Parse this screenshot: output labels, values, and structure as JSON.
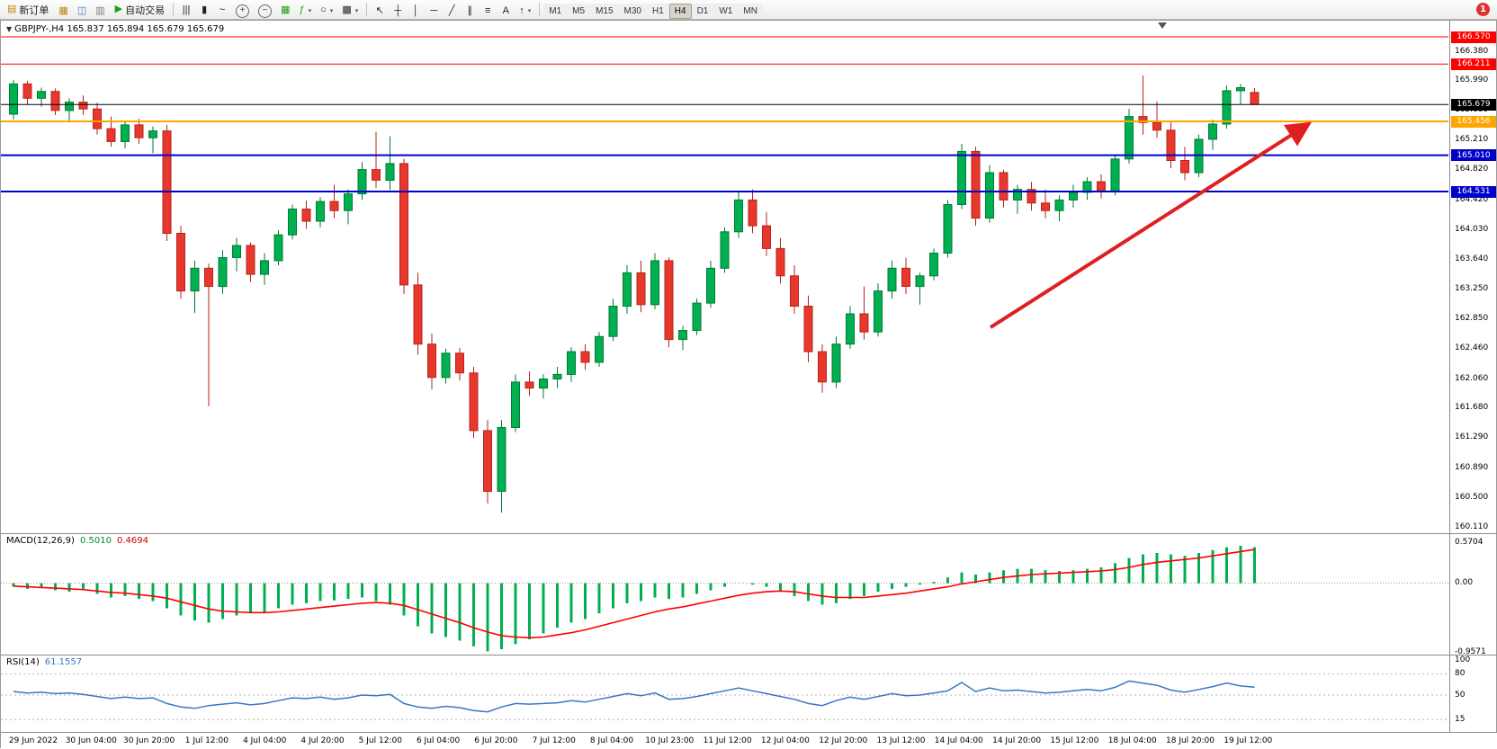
{
  "toolbar": {
    "new_order": {
      "label": "新订单",
      "icon": "new-order-icon",
      "glyph": "▤",
      "color": "#c8860a"
    },
    "left_icons": [
      {
        "name": "charts-window-icon",
        "glyph": "▦",
        "color": "#b8860b"
      },
      {
        "name": "market-watch-icon",
        "glyph": "◫",
        "color": "#4a6fb5"
      },
      {
        "name": "navigator-icon",
        "glyph": "▥",
        "color": "#7a7a7a"
      }
    ],
    "auto_trading": {
      "label": "自动交易",
      "icon": "play-icon",
      "glyph": "▶",
      "color": "#18a018"
    },
    "chart_icons": [
      {
        "name": "bar-chart-icon",
        "glyph": "|||"
      },
      {
        "name": "candlestick-chart-icon",
        "glyph": "▮"
      },
      {
        "name": "line-chart-icon",
        "glyph": "~"
      },
      {
        "name": "zoom-in-icon",
        "glyph": "+",
        "zoom": true
      },
      {
        "name": "zoom-out-icon",
        "glyph": "−",
        "zoom": true
      },
      {
        "name": "arrange-windows-icon",
        "glyph": "▦",
        "color": "#18a018"
      },
      {
        "name": "indicators-icon",
        "glyph": "ƒ",
        "color": "#18a018",
        "caret": true
      },
      {
        "name": "periods-icon",
        "glyph": "○",
        "caret": true
      },
      {
        "name": "templates-icon",
        "glyph": "▩",
        "caret": true
      }
    ],
    "drawing_icons": [
      {
        "name": "cursor-icon",
        "glyph": "↖"
      },
      {
        "name": "crosshair-icon",
        "glyph": "┼"
      },
      {
        "name": "vertical-line-icon",
        "glyph": "│"
      },
      {
        "name": "horizontal-line-icon",
        "glyph": "─"
      },
      {
        "name": "trendline-icon",
        "glyph": "╱"
      },
      {
        "name": "channel-icon",
        "glyph": "∥"
      },
      {
        "name": "fibonacci-icon",
        "glyph": "≡"
      },
      {
        "name": "text-icon",
        "glyph": "A"
      },
      {
        "name": "arrow-objects-icon",
        "glyph": "↑",
        "caret": true
      }
    ],
    "timeframes": [
      "M1",
      "M5",
      "M15",
      "M30",
      "H1",
      "H4",
      "D1",
      "W1",
      "MN"
    ],
    "active_timeframe": "H4",
    "notification_badge": "1"
  },
  "chart": {
    "symbol_label": "GBPJPY-,H4 165.837 165.894 165.679 165.679",
    "price_axis_labels": [
      "166.380",
      "165.990",
      "165.600",
      "165.210",
      "164.820",
      "164.420",
      "164.030",
      "163.640",
      "163.250",
      "162.850",
      "162.460",
      "162.060",
      "161.680",
      "161.290",
      "160.890",
      "160.500",
      "160.110"
    ],
    "price_badges": [
      {
        "label": "166.570",
        "price": 166.57,
        "bg": "#ff0000"
      },
      {
        "label": "166.211",
        "price": 166.211,
        "bg": "#ff0000"
      },
      {
        "label": "165.679",
        "price": 165.679,
        "bg": "#000000"
      },
      {
        "label": "165.456",
        "price": 165.456,
        "bg": "#ffa500"
      },
      {
        "label": "165.010",
        "price": 165.01,
        "bg": "#0000cc"
      },
      {
        "label": "164.531",
        "price": 164.531,
        "bg": "#0000cc"
      }
    ],
    "time_axis_labels": [
      "29 Jun 2022",
      "30 Jun 04:00",
      "30 Jun 20:00",
      "1 Jul 12:00",
      "4 Jul 04:00",
      "4 Jul 20:00",
      "5 Jul 12:00",
      "6 Jul 04:00",
      "6 Jul 20:00",
      "7 Jul 12:00",
      "8 Jul 04:00",
      "10 Jul 23:00",
      "11 Jul 12:00",
      "12 Jul 04:00",
      "12 Jul 20:00",
      "13 Jul 12:00",
      "14 Jul 04:00",
      "14 Jul 20:00",
      "15 Jul 12:00",
      "18 Jul 04:00",
      "18 Jul 20:00",
      "19 Jul 12:00"
    ]
  },
  "chart_data": {
    "type": "candlestick",
    "symbol": "GBPJPY-",
    "timeframe": "H4",
    "current_ohlc": {
      "open": "165.837",
      "high": "165.894",
      "low": "165.679",
      "close": "165.679"
    },
    "price_range": [
      160.11,
      166.57
    ],
    "colors": {
      "up": "#00b050",
      "up_border": "#007a35",
      "down": "#e8372c",
      "down_border": "#b3251c",
      "macd_histogram": "#00b050",
      "macd_signal": "#ff0000",
      "rsi_line": "#3a77c2",
      "arrow": "#e02020",
      "bid_line": "#000000",
      "level_red": "#ff0000",
      "level_orange": "#ffa500",
      "level_blue": "#0000cc"
    },
    "levels": [
      {
        "name": "resistance-line-upper",
        "price": 166.57,
        "color": "#ff0000",
        "width": 1
      },
      {
        "name": "resistance-line-lower",
        "price": 166.211,
        "color": "#ff0000",
        "width": 1
      },
      {
        "name": "bid-price-line",
        "price": 165.679,
        "color": "#000000",
        "width": 1
      },
      {
        "name": "orange-level-line",
        "price": 165.456,
        "color": "#ffa500",
        "width": 2
      },
      {
        "name": "support-line-upper",
        "price": 165.01,
        "color": "#0000cc",
        "width": 2
      },
      {
        "name": "support-line-lower",
        "price": 164.531,
        "color": "#0000cc",
        "width": 2
      }
    ],
    "annotation_arrow": {
      "from_price": [
        1100,
        162.74
      ],
      "to_price": [
        1452,
        165.41
      ],
      "color": "#e02020"
    },
    "ohlc": [
      [
        165.55,
        166.0,
        165.48,
        165.95
      ],
      [
        165.95,
        165.99,
        165.68,
        165.76
      ],
      [
        165.76,
        165.9,
        165.65,
        165.85
      ],
      [
        165.85,
        165.89,
        165.54,
        165.6
      ],
      [
        165.6,
        165.76,
        165.45,
        165.71
      ],
      [
        165.71,
        165.8,
        165.54,
        165.62
      ],
      [
        165.62,
        165.7,
        165.28,
        165.36
      ],
      [
        165.36,
        165.52,
        165.12,
        165.19
      ],
      [
        165.19,
        165.46,
        165.1,
        165.41
      ],
      [
        165.41,
        165.49,
        165.16,
        165.24
      ],
      [
        165.24,
        165.39,
        165.04,
        165.33
      ],
      [
        165.33,
        165.41,
        163.88,
        163.98
      ],
      [
        163.98,
        164.08,
        163.12,
        163.22
      ],
      [
        163.22,
        163.62,
        162.93,
        163.52
      ],
      [
        163.52,
        163.58,
        161.7,
        163.28
      ],
      [
        163.28,
        163.76,
        163.18,
        163.66
      ],
      [
        163.66,
        163.92,
        163.48,
        163.82
      ],
      [
        163.82,
        163.86,
        163.34,
        163.44
      ],
      [
        163.44,
        163.72,
        163.3,
        163.62
      ],
      [
        163.62,
        164.02,
        163.56,
        163.96
      ],
      [
        163.96,
        164.36,
        163.9,
        164.3
      ],
      [
        164.3,
        164.41,
        164.04,
        164.14
      ],
      [
        164.14,
        164.46,
        164.06,
        164.4
      ],
      [
        164.4,
        164.62,
        164.18,
        164.28
      ],
      [
        164.28,
        164.56,
        164.1,
        164.5
      ],
      [
        164.5,
        164.92,
        164.42,
        164.82
      ],
      [
        164.82,
        165.32,
        164.58,
        164.68
      ],
      [
        164.68,
        165.26,
        164.55,
        164.9
      ],
      [
        164.9,
        164.96,
        163.18,
        163.3
      ],
      [
        163.3,
        163.46,
        162.38,
        162.52
      ],
      [
        162.52,
        162.66,
        161.92,
        162.08
      ],
      [
        162.08,
        162.46,
        162.0,
        162.4
      ],
      [
        162.4,
        162.47,
        162.04,
        162.14
      ],
      [
        162.14,
        162.22,
        161.28,
        161.38
      ],
      [
        161.38,
        161.52,
        160.42,
        160.58
      ],
      [
        160.58,
        161.52,
        160.3,
        161.42
      ],
      [
        161.42,
        162.12,
        161.36,
        162.02
      ],
      [
        162.02,
        162.16,
        161.84,
        161.94
      ],
      [
        161.94,
        162.12,
        161.8,
        162.06
      ],
      [
        162.06,
        162.22,
        161.94,
        162.12
      ],
      [
        162.12,
        162.48,
        162.02,
        162.42
      ],
      [
        162.42,
        162.52,
        162.18,
        162.28
      ],
      [
        162.28,
        162.68,
        162.22,
        162.62
      ],
      [
        162.62,
        163.12,
        162.56,
        163.02
      ],
      [
        163.02,
        163.56,
        162.92,
        163.46
      ],
      [
        163.46,
        163.62,
        162.94,
        163.04
      ],
      [
        163.04,
        163.72,
        162.98,
        163.62
      ],
      [
        163.62,
        163.66,
        162.48,
        162.58
      ],
      [
        162.58,
        162.76,
        162.44,
        162.7
      ],
      [
        162.7,
        163.12,
        162.64,
        163.06
      ],
      [
        163.06,
        163.62,
        163.0,
        163.52
      ],
      [
        163.52,
        164.06,
        163.46,
        164.0
      ],
      [
        164.0,
        164.52,
        163.92,
        164.42
      ],
      [
        164.42,
        164.56,
        163.98,
        164.08
      ],
      [
        164.08,
        164.26,
        163.68,
        163.78
      ],
      [
        163.78,
        163.92,
        163.32,
        163.42
      ],
      [
        163.42,
        163.56,
        162.92,
        163.02
      ],
      [
        163.02,
        163.16,
        162.28,
        162.42
      ],
      [
        162.42,
        162.52,
        161.88,
        162.02
      ],
      [
        162.02,
        162.62,
        161.94,
        162.52
      ],
      [
        162.52,
        163.02,
        162.46,
        162.92
      ],
      [
        162.92,
        163.28,
        162.58,
        162.68
      ],
      [
        162.68,
        163.32,
        162.62,
        163.22
      ],
      [
        163.22,
        163.62,
        163.12,
        163.52
      ],
      [
        163.52,
        163.66,
        163.18,
        163.28
      ],
      [
        163.28,
        163.46,
        163.04,
        163.42
      ],
      [
        163.42,
        163.78,
        163.36,
        163.72
      ],
      [
        163.72,
        164.42,
        163.66,
        164.36
      ],
      [
        164.36,
        165.16,
        164.3,
        165.06
      ],
      [
        165.06,
        165.12,
        164.08,
        164.18
      ],
      [
        164.18,
        164.88,
        164.12,
        164.78
      ],
      [
        164.78,
        164.82,
        164.32,
        164.42
      ],
      [
        164.42,
        164.62,
        164.24,
        164.56
      ],
      [
        164.56,
        164.66,
        164.28,
        164.38
      ],
      [
        164.38,
        164.56,
        164.18,
        164.28
      ],
      [
        164.28,
        164.48,
        164.14,
        164.42
      ],
      [
        164.42,
        164.62,
        164.32,
        164.52
      ],
      [
        164.52,
        164.72,
        164.42,
        164.66
      ],
      [
        164.66,
        164.76,
        164.44,
        164.54
      ],
      [
        164.54,
        165.02,
        164.48,
        164.96
      ],
      [
        164.96,
        165.62,
        164.9,
        165.52
      ],
      [
        165.52,
        166.06,
        165.28,
        165.44
      ],
      [
        165.44,
        165.72,
        165.24,
        165.34
      ],
      [
        165.34,
        165.46,
        164.84,
        164.94
      ],
      [
        164.94,
        165.12,
        164.68,
        164.78
      ],
      [
        164.78,
        165.28,
        164.72,
        165.22
      ],
      [
        165.22,
        165.48,
        165.08,
        165.42
      ],
      [
        165.42,
        165.93,
        165.36,
        165.86
      ],
      [
        165.86,
        165.95,
        165.68,
        165.9
      ],
      [
        165.837,
        165.894,
        165.679,
        165.679
      ]
    ],
    "indicators": {
      "macd": {
        "label": "MACD(12,26,9)",
        "main_value": "0.5010",
        "signal_value": "0.4694",
        "scale": [
          "0.5704",
          "0.00",
          "-0.9571"
        ],
        "histogram": [
          -0.05,
          -0.08,
          -0.06,
          -0.1,
          -0.12,
          -0.1,
          -0.15,
          -0.2,
          -0.18,
          -0.22,
          -0.25,
          -0.35,
          -0.45,
          -0.52,
          -0.55,
          -0.5,
          -0.45,
          -0.42,
          -0.4,
          -0.35,
          -0.3,
          -0.28,
          -0.25,
          -0.24,
          -0.22,
          -0.2,
          -0.25,
          -0.3,
          -0.45,
          -0.6,
          -0.7,
          -0.75,
          -0.8,
          -0.88,
          -0.95,
          -0.92,
          -0.85,
          -0.78,
          -0.7,
          -0.62,
          -0.55,
          -0.5,
          -0.42,
          -0.35,
          -0.28,
          -0.25,
          -0.2,
          -0.22,
          -0.2,
          -0.15,
          -0.1,
          -0.05,
          0.0,
          -0.02,
          -0.05,
          -0.1,
          -0.18,
          -0.25,
          -0.3,
          -0.28,
          -0.22,
          -0.18,
          -0.12,
          -0.08,
          -0.05,
          -0.02,
          0.02,
          0.08,
          0.15,
          0.12,
          0.15,
          0.18,
          0.2,
          0.2,
          0.18,
          0.17,
          0.18,
          0.2,
          0.22,
          0.28,
          0.35,
          0.4,
          0.42,
          0.4,
          0.38,
          0.42,
          0.46,
          0.5,
          0.52,
          0.501
        ],
        "signal": [
          -0.04,
          -0.05,
          -0.06,
          -0.07,
          -0.08,
          -0.09,
          -0.11,
          -0.13,
          -0.14,
          -0.16,
          -0.18,
          -0.21,
          -0.26,
          -0.31,
          -0.36,
          -0.39,
          -0.4,
          -0.41,
          -0.41,
          -0.4,
          -0.38,
          -0.36,
          -0.34,
          -0.32,
          -0.3,
          -0.28,
          -0.27,
          -0.28,
          -0.31,
          -0.37,
          -0.43,
          -0.49,
          -0.55,
          -0.62,
          -0.68,
          -0.73,
          -0.75,
          -0.76,
          -0.75,
          -0.72,
          -0.69,
          -0.65,
          -0.6,
          -0.55,
          -0.5,
          -0.45,
          -0.4,
          -0.36,
          -0.33,
          -0.29,
          -0.25,
          -0.21,
          -0.17,
          -0.14,
          -0.12,
          -0.11,
          -0.12,
          -0.15,
          -0.18,
          -0.2,
          -0.2,
          -0.2,
          -0.18,
          -0.16,
          -0.14,
          -0.11,
          -0.08,
          -0.05,
          -0.01,
          0.02,
          0.05,
          0.08,
          0.1,
          0.12,
          0.13,
          0.14,
          0.15,
          0.16,
          0.17,
          0.19,
          0.22,
          0.26,
          0.29,
          0.31,
          0.33,
          0.35,
          0.38,
          0.41,
          0.44,
          0.4694
        ]
      },
      "rsi": {
        "label": "RSI(14)",
        "value": "61.1557",
        "scale": [
          "100",
          "80",
          "50",
          "15"
        ],
        "values": [
          55,
          53,
          54,
          52,
          53,
          51,
          48,
          45,
          47,
          45,
          46,
          38,
          33,
          31,
          35,
          37,
          39,
          36,
          38,
          42,
          46,
          45,
          47,
          44,
          46,
          50,
          49,
          51,
          38,
          33,
          31,
          34,
          32,
          28,
          26,
          33,
          38,
          37,
          38,
          39,
          42,
          40,
          44,
          48,
          52,
          49,
          53,
          44,
          45,
          48,
          52,
          56,
          60,
          56,
          52,
          48,
          44,
          38,
          35,
          42,
          47,
          44,
          48,
          52,
          49,
          50,
          53,
          56,
          68,
          55,
          60,
          56,
          57,
          55,
          53,
          54,
          56,
          58,
          56,
          61,
          70,
          67,
          64,
          57,
          54,
          58,
          62,
          67,
          63,
          61.1557
        ]
      }
    }
  }
}
